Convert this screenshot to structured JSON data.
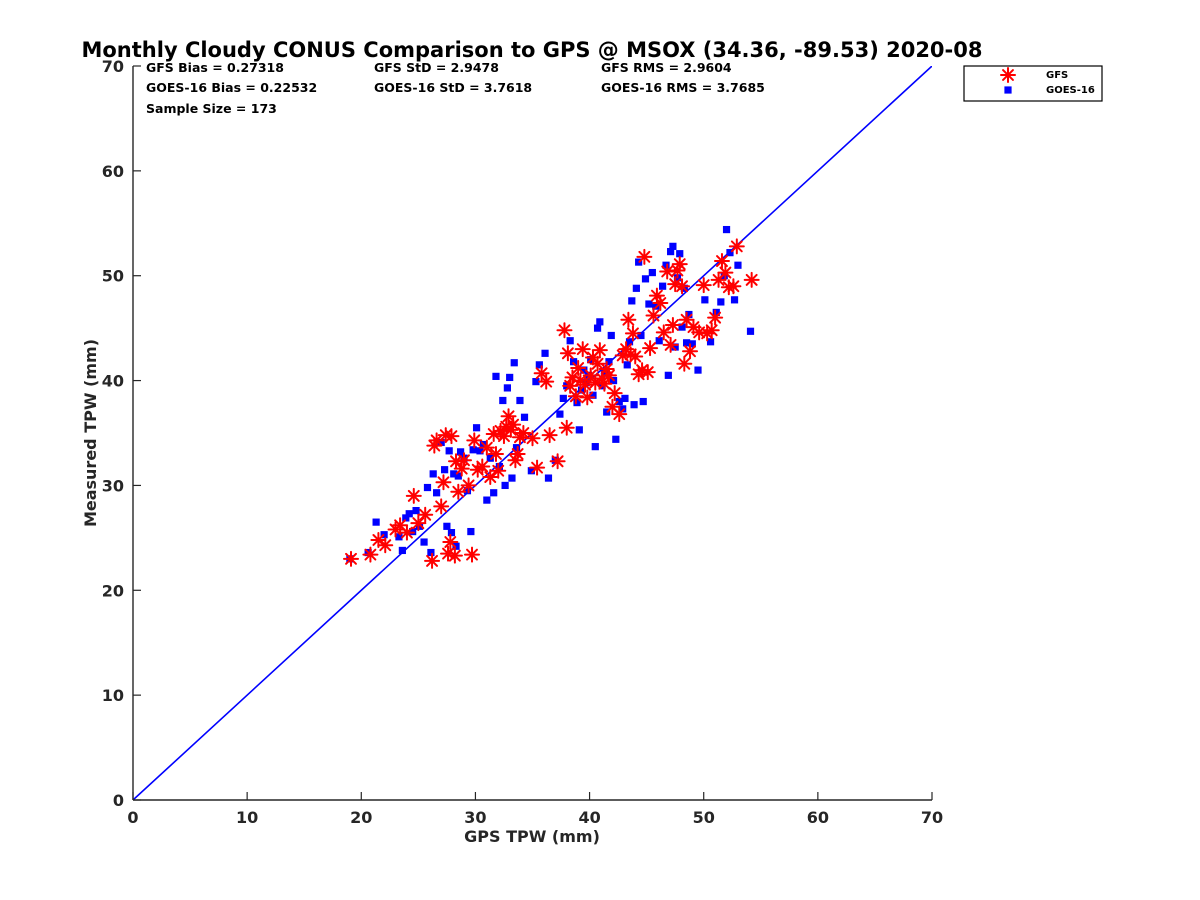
{
  "chart_data": {
    "type": "scatter",
    "title": "Monthly Cloudy CONUS Comparison to GPS @ MSOX (34.36, -89.53) 2020-08",
    "xlabel": "GPS TPW (mm)",
    "ylabel": "Measured TPW (mm)",
    "xlim": [
      0,
      70
    ],
    "ylim": [
      0,
      70
    ],
    "xticks": [
      0,
      10,
      20,
      30,
      40,
      50,
      60,
      70
    ],
    "yticks": [
      0,
      10,
      20,
      30,
      40,
      50,
      60,
      70
    ],
    "grid": false,
    "legend_position": "top-right, outside plot area",
    "stats": [
      [
        "GFS Bias = 0.27318",
        "GFS StD = 2.9478",
        "GFS RMS = 2.9604"
      ],
      [
        "GOES-16 Bias = 0.22532",
        "GOES-16 StD = 3.7618",
        "GOES-16 RMS = 3.7685"
      ],
      [
        "Sample Size = 173"
      ]
    ],
    "reference_line": {
      "name": "1:1",
      "x": [
        0,
        70
      ],
      "y": [
        0,
        70
      ],
      "color": "#0000ff"
    },
    "series": [
      {
        "name": "GFS",
        "marker": "asterisk",
        "color": "#ff0000",
        "points": [
          [
            19.1,
            23.0
          ],
          [
            20.8,
            23.4
          ],
          [
            21.5,
            24.8
          ],
          [
            22.1,
            24.3
          ],
          [
            23.0,
            25.8
          ],
          [
            23.4,
            26.2
          ],
          [
            24.0,
            25.5
          ],
          [
            24.6,
            29.0
          ],
          [
            25.0,
            26.4
          ],
          [
            25.6,
            27.2
          ],
          [
            26.2,
            22.8
          ],
          [
            26.4,
            33.8
          ],
          [
            26.6,
            34.3
          ],
          [
            27.0,
            28.0
          ],
          [
            27.2,
            30.3
          ],
          [
            27.4,
            34.8
          ],
          [
            27.6,
            23.5
          ],
          [
            27.8,
            24.6
          ],
          [
            27.9,
            34.7
          ],
          [
            28.2,
            23.3
          ],
          [
            28.3,
            32.3
          ],
          [
            28.5,
            29.4
          ],
          [
            28.8,
            31.6
          ],
          [
            29.0,
            32.4
          ],
          [
            29.4,
            30.0
          ],
          [
            29.7,
            23.4
          ],
          [
            29.9,
            34.3
          ],
          [
            30.2,
            31.5
          ],
          [
            30.6,
            31.8
          ],
          [
            31.0,
            33.6
          ],
          [
            31.3,
            30.8
          ],
          [
            31.6,
            34.9
          ],
          [
            31.8,
            33.0
          ],
          [
            32.0,
            31.4
          ],
          [
            32.2,
            35.2
          ],
          [
            32.5,
            34.7
          ],
          [
            32.7,
            35.6
          ],
          [
            32.9,
            36.6
          ],
          [
            33.1,
            35.3
          ],
          [
            33.3,
            35.8
          ],
          [
            33.5,
            32.4
          ],
          [
            33.7,
            33.0
          ],
          [
            33.9,
            34.6
          ],
          [
            34.2,
            35.0
          ],
          [
            35.0,
            34.5
          ],
          [
            35.4,
            31.7
          ],
          [
            35.8,
            40.7
          ],
          [
            36.2,
            39.9
          ],
          [
            36.5,
            34.8
          ],
          [
            37.2,
            32.3
          ],
          [
            37.8,
            44.8
          ],
          [
            38.0,
            35.5
          ],
          [
            38.1,
            42.6
          ],
          [
            38.3,
            39.5
          ],
          [
            38.5,
            40.3
          ],
          [
            38.8,
            38.5
          ],
          [
            39.0,
            41.2
          ],
          [
            39.2,
            40.0
          ],
          [
            39.4,
            43.0
          ],
          [
            39.6,
            39.6
          ],
          [
            39.8,
            38.4
          ],
          [
            40.1,
            40.5
          ],
          [
            40.3,
            42.2
          ],
          [
            40.5,
            39.8
          ],
          [
            40.7,
            41.6
          ],
          [
            40.9,
            42.9
          ],
          [
            41.1,
            40.2
          ],
          [
            41.3,
            39.7
          ],
          [
            41.5,
            41.1
          ],
          [
            41.7,
            40.5
          ],
          [
            42.0,
            37.5
          ],
          [
            42.2,
            38.8
          ],
          [
            42.6,
            36.8
          ],
          [
            42.9,
            42.4
          ],
          [
            43.2,
            43.0
          ],
          [
            43.4,
            45.8
          ],
          [
            43.6,
            42.5
          ],
          [
            43.8,
            44.5
          ],
          [
            44.0,
            42.3
          ],
          [
            44.3,
            40.6
          ],
          [
            44.6,
            41.0
          ],
          [
            44.8,
            51.8
          ],
          [
            45.1,
            40.8
          ],
          [
            45.3,
            43.1
          ],
          [
            45.6,
            46.2
          ],
          [
            45.9,
            48.1
          ],
          [
            46.2,
            47.4
          ],
          [
            46.5,
            44.6
          ],
          [
            46.8,
            50.4
          ],
          [
            47.1,
            43.4
          ],
          [
            47.3,
            45.3
          ],
          [
            47.5,
            49.2
          ],
          [
            47.7,
            50.5
          ],
          [
            47.9,
            51.1
          ],
          [
            48.1,
            49.0
          ],
          [
            48.3,
            41.6
          ],
          [
            48.5,
            45.8
          ],
          [
            48.8,
            42.8
          ],
          [
            49.1,
            45.1
          ],
          [
            49.6,
            44.6
          ],
          [
            50.0,
            49.1
          ],
          [
            50.3,
            44.5
          ],
          [
            50.7,
            44.8
          ],
          [
            51.0,
            46.0
          ],
          [
            51.3,
            49.6
          ],
          [
            51.6,
            51.4
          ],
          [
            51.9,
            50.3
          ],
          [
            52.2,
            48.9
          ],
          [
            52.6,
            49.0
          ],
          [
            52.9,
            52.8
          ],
          [
            54.2,
            49.6
          ]
        ]
      },
      {
        "name": "GOES-16",
        "marker": "square",
        "color": "#0000ff",
        "points": [
          [
            19.0,
            23.0
          ],
          [
            20.6,
            23.6
          ],
          [
            21.3,
            26.5
          ],
          [
            22.0,
            25.3
          ],
          [
            23.3,
            25.1
          ],
          [
            23.6,
            23.8
          ],
          [
            23.9,
            26.9
          ],
          [
            24.2,
            27.3
          ],
          [
            24.5,
            25.6
          ],
          [
            24.8,
            27.6
          ],
          [
            25.1,
            26.1
          ],
          [
            25.5,
            24.6
          ],
          [
            25.8,
            29.8
          ],
          [
            26.1,
            23.6
          ],
          [
            26.3,
            31.1
          ],
          [
            26.6,
            29.3
          ],
          [
            27.0,
            34.1
          ],
          [
            27.3,
            31.5
          ],
          [
            27.5,
            26.1
          ],
          [
            27.7,
            33.3
          ],
          [
            27.9,
            25.5
          ],
          [
            28.1,
            31.1
          ],
          [
            28.3,
            24.2
          ],
          [
            28.5,
            30.9
          ],
          [
            28.7,
            33.2
          ],
          [
            29.0,
            32.6
          ],
          [
            29.3,
            29.5
          ],
          [
            29.6,
            25.6
          ],
          [
            29.8,
            33.4
          ],
          [
            30.1,
            35.5
          ],
          [
            30.4,
            33.3
          ],
          [
            30.7,
            33.9
          ],
          [
            31.0,
            28.6
          ],
          [
            31.3,
            32.6
          ],
          [
            31.6,
            29.3
          ],
          [
            31.8,
            40.4
          ],
          [
            32.1,
            31.8
          ],
          [
            32.4,
            38.1
          ],
          [
            32.6,
            30.0
          ],
          [
            32.8,
            39.3
          ],
          [
            33.0,
            40.3
          ],
          [
            33.2,
            30.7
          ],
          [
            33.4,
            41.7
          ],
          [
            33.6,
            33.6
          ],
          [
            33.9,
            38.1
          ],
          [
            34.3,
            36.5
          ],
          [
            34.9,
            31.4
          ],
          [
            35.3,
            39.9
          ],
          [
            35.6,
            41.5
          ],
          [
            36.1,
            42.6
          ],
          [
            36.4,
            30.7
          ],
          [
            37.0,
            32.4
          ],
          [
            37.4,
            36.8
          ],
          [
            37.7,
            38.3
          ],
          [
            38.0,
            39.5
          ],
          [
            38.3,
            43.8
          ],
          [
            38.6,
            41.8
          ],
          [
            38.9,
            37.9
          ],
          [
            39.1,
            35.3
          ],
          [
            39.3,
            39.1
          ],
          [
            39.5,
            41.0
          ],
          [
            39.7,
            39.8
          ],
          [
            39.9,
            40.5
          ],
          [
            40.1,
            42.0
          ],
          [
            40.3,
            38.6
          ],
          [
            40.5,
            33.7
          ],
          [
            40.7,
            45.0
          ],
          [
            40.9,
            45.6
          ],
          [
            41.1,
            39.5
          ],
          [
            41.3,
            40.7
          ],
          [
            41.5,
            37.0
          ],
          [
            41.7,
            41.8
          ],
          [
            41.9,
            44.3
          ],
          [
            42.1,
            40.0
          ],
          [
            42.3,
            34.4
          ],
          [
            42.6,
            38.0
          ],
          [
            42.9,
            37.3
          ],
          [
            43.1,
            38.3
          ],
          [
            43.3,
            41.5
          ],
          [
            43.5,
            43.7
          ],
          [
            43.7,
            47.6
          ],
          [
            43.9,
            37.7
          ],
          [
            44.1,
            48.8
          ],
          [
            44.3,
            51.3
          ],
          [
            44.5,
            44.3
          ],
          [
            44.7,
            38.0
          ],
          [
            44.9,
            49.7
          ],
          [
            45.2,
            47.3
          ],
          [
            45.5,
            50.3
          ],
          [
            45.8,
            47.1
          ],
          [
            46.1,
            43.8
          ],
          [
            46.4,
            49.0
          ],
          [
            46.7,
            51.0
          ],
          [
            46.9,
            40.5
          ],
          [
            47.1,
            52.3
          ],
          [
            47.3,
            52.8
          ],
          [
            47.5,
            43.2
          ],
          [
            47.7,
            49.8
          ],
          [
            47.9,
            52.1
          ],
          [
            48.1,
            45.1
          ],
          [
            48.3,
            48.8
          ],
          [
            48.5,
            43.6
          ],
          [
            48.7,
            46.3
          ],
          [
            49.0,
            43.5
          ],
          [
            49.5,
            41.0
          ],
          [
            50.1,
            47.7
          ],
          [
            50.6,
            43.7
          ],
          [
            51.1,
            46.5
          ],
          [
            51.5,
            47.5
          ],
          [
            51.8,
            50.0
          ],
          [
            52.0,
            54.4
          ],
          [
            52.3,
            52.2
          ],
          [
            52.7,
            47.7
          ],
          [
            53.0,
            51.0
          ],
          [
            54.1,
            44.7
          ]
        ]
      }
    ]
  }
}
